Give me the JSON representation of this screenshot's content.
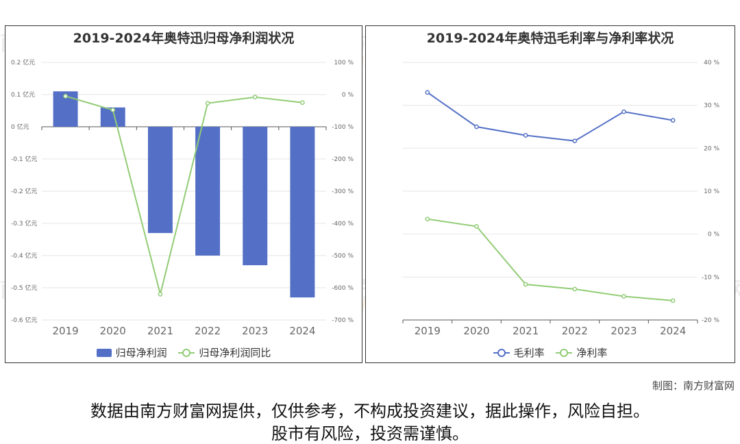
{
  "watermark": {
    "cn": "南方财富网",
    "en": "southmoney.com"
  },
  "credit": "制图：南方财富网",
  "disclaimer": [
    "数据由南方财富网提供，仅供参考，不构成投资建议，据此操作，风险自担。",
    "股市有风险，投资需谨慎。"
  ],
  "chart_data": [
    {
      "type": "bar",
      "title": "2019-2024年奥特迅归母净利润状况",
      "categories": [
        "2019",
        "2020",
        "2021",
        "2022",
        "2023",
        "2024"
      ],
      "series": [
        {
          "name": "归母净利润",
          "kind": "bar",
          "axis": "left",
          "color": "#5470c6",
          "values": [
            0.11,
            0.06,
            -0.33,
            -0.4,
            -0.43,
            -0.53
          ]
        },
        {
          "name": "归母净利润同比",
          "kind": "line",
          "axis": "right",
          "color": "#91cc75",
          "values": [
            -5,
            -48,
            -620,
            -27,
            -8,
            -25
          ]
        }
      ],
      "y_left": {
        "min": -0.6,
        "max": 0.2,
        "step": 0.1,
        "ticks": [
          "0.2 亿元",
          "0.1 亿元",
          "0 亿元",
          "-0.1 亿元",
          "-0.2 亿元",
          "-0.3 亿元",
          "-0.4 亿元",
          "-0.5 亿元",
          "-0.6 亿元"
        ]
      },
      "y_right": {
        "min": -700,
        "max": 100,
        "step": 100,
        "ticks": [
          "100 %",
          "0 %",
          "-100 %",
          "-200 %",
          "-300 %",
          "-400 %",
          "-500 %",
          "-600 %",
          "-700 %"
        ]
      },
      "grid": true,
      "legend": "bottom-center"
    },
    {
      "type": "line",
      "title": "2019-2024年奥特迅毛利率与净利率状况",
      "categories": [
        "2019",
        "2020",
        "2021",
        "2022",
        "2023",
        "2024"
      ],
      "series": [
        {
          "name": "毛利率",
          "color": "#5470c6",
          "values": [
            33.0,
            25.0,
            23.0,
            21.7,
            28.5,
            26.5
          ]
        },
        {
          "name": "净利率",
          "color": "#91cc75",
          "values": [
            3.5,
            1.8,
            -11.7,
            -12.8,
            -14.5,
            -15.5
          ]
        }
      ],
      "y_right": {
        "min": -20,
        "max": 40,
        "step": 10,
        "ticks": [
          "40 %",
          "30 %",
          "20 %",
          "10 %",
          "0 %",
          "-10 %",
          "-20 %"
        ]
      },
      "grid": true,
      "legend": "bottom-center"
    }
  ]
}
